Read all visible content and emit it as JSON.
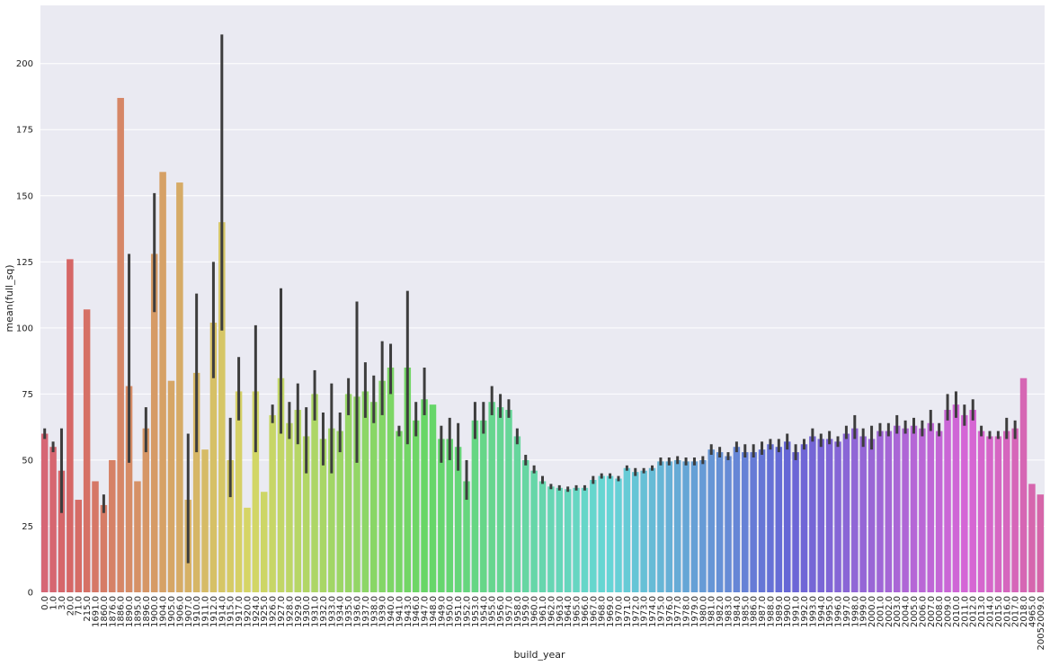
{
  "chart_data": {
    "type": "bar",
    "x_label": "build_year",
    "y_label": "mean(full_sq)",
    "categories": [
      "0.0",
      "1.0",
      "3.0",
      "20.0",
      "71.0",
      "215.0",
      "1691.0",
      "1860.0",
      "1876.0",
      "1886.0",
      "1890.0",
      "1895.0",
      "1896.0",
      "1900.0",
      "1904.0",
      "1905.0",
      "1906.0",
      "1907.0",
      "1910.0",
      "1911.0",
      "1912.0",
      "1914.0",
      "1915.0",
      "1917.0",
      "1920.0",
      "1924.0",
      "1925.0",
      "1926.0",
      "1927.0",
      "1928.0",
      "1929.0",
      "1930.0",
      "1931.0",
      "1932.0",
      "1933.0",
      "1934.0",
      "1935.0",
      "1936.0",
      "1937.0",
      "1938.0",
      "1939.0",
      "1940.0",
      "1941.0",
      "1943.0",
      "1946.0",
      "1947.0",
      "1948.0",
      "1949.0",
      "1950.0",
      "1951.0",
      "1952.0",
      "1953.0",
      "1954.0",
      "1955.0",
      "1956.0",
      "1957.0",
      "1958.0",
      "1959.0",
      "1960.0",
      "1961.0",
      "1962.0",
      "1963.0",
      "1964.0",
      "1965.0",
      "1966.0",
      "1967.0",
      "1968.0",
      "1969.0",
      "1970.0",
      "1971.0",
      "1972.0",
      "1973.0",
      "1974.0",
      "1975.0",
      "1976.0",
      "1977.0",
      "1978.0",
      "1979.0",
      "1980.0",
      "1981.0",
      "1982.0",
      "1983.0",
      "1984.0",
      "1985.0",
      "1986.0",
      "1987.0",
      "1988.0",
      "1989.0",
      "1990.0",
      "1991.0",
      "1992.0",
      "1993.0",
      "1994.0",
      "1995.0",
      "1996.0",
      "1997.0",
      "1998.0",
      "1999.0",
      "2000.0",
      "2001.0",
      "2002.0",
      "2003.0",
      "2004.0",
      "2005.0",
      "2006.0",
      "2007.0",
      "2008.0",
      "2009.0",
      "2010.0",
      "2011.0",
      "2012.0",
      "2013.0",
      "2014.0",
      "2015.0",
      "2016.0",
      "2017.0",
      "2018.0",
      "4965.0",
      "20052009.0"
    ],
    "values": [
      60,
      55,
      46,
      126,
      35,
      107,
      42,
      33,
      50,
      187,
      78,
      42,
      62,
      128,
      159,
      80,
      155,
      35,
      83,
      54,
      102,
      140,
      50,
      76,
      32,
      76,
      38,
      67,
      81,
      64,
      69,
      59,
      75,
      58,
      62,
      61,
      75,
      74,
      76,
      72,
      80,
      85,
      61,
      85,
      65,
      73,
      71,
      58,
      58,
      55,
      42,
      65,
      65,
      72,
      70,
      69,
      59,
      50,
      46,
      42,
      40,
      39.5,
      39,
      39.5,
      39.5,
      42.5,
      44,
      44,
      43,
      47,
      45.5,
      46,
      47,
      49.5,
      49.5,
      50,
      49.5,
      49.5,
      50,
      54,
      53,
      51.5,
      55,
      53,
      53,
      54,
      56,
      55,
      57,
      53,
      56,
      59,
      58,
      58,
      57,
      60,
      62,
      59,
      58,
      61,
      61,
      63,
      62,
      63,
      62,
      64,
      61,
      69,
      71,
      67,
      69,
      61,
      59,
      59,
      61,
      62,
      81,
      41,
      37
    ],
    "ci_low": [
      58,
      53,
      30,
      null,
      null,
      null,
      null,
      30,
      null,
      null,
      49,
      null,
      53,
      106,
      null,
      null,
      null,
      11,
      53,
      null,
      81,
      99,
      36,
      65,
      null,
      53,
      null,
      64,
      60,
      58,
      56,
      45,
      65,
      48,
      45,
      53,
      67,
      49,
      66,
      64,
      67,
      75,
      59,
      56,
      59,
      67,
      null,
      49,
      50,
      46,
      35,
      58,
      60,
      67,
      66,
      66,
      56,
      48,
      45,
      41,
      39,
      38.5,
      38,
      38.5,
      38.5,
      41,
      43,
      43,
      42,
      46,
      44,
      45,
      46,
      48,
      48,
      48.5,
      48,
      48,
      48.5,
      52,
      51,
      50,
      53,
      51,
      51,
      52,
      54,
      53,
      54,
      50,
      54,
      57,
      55,
      56,
      55,
      58,
      58,
      55,
      54,
      59,
      59,
      60,
      60,
      60,
      59,
      61,
      59,
      65,
      66,
      63,
      65,
      59,
      58,
      58,
      58,
      58,
      null,
      null,
      null
    ],
    "ci_high": [
      62,
      57,
      62,
      null,
      null,
      null,
      null,
      37,
      null,
      null,
      128,
      null,
      70,
      151,
      null,
      null,
      null,
      60,
      113,
      null,
      125,
      211,
      66,
      89,
      null,
      101,
      null,
      71,
      115,
      72,
      79,
      70,
      84,
      68,
      79,
      68,
      81,
      110,
      87,
      82,
      95,
      94,
      63,
      114,
      72,
      85,
      null,
      63,
      66,
      64,
      50,
      72,
      72,
      78,
      75,
      73,
      62,
      52,
      48,
      44,
      41,
      40.5,
      40,
      40.5,
      40.5,
      44,
      45,
      45,
      44,
      48,
      47,
      47,
      48,
      51,
      51,
      51.5,
      51,
      51,
      51.5,
      56,
      55,
      53,
      57,
      56,
      56,
      57,
      58,
      58,
      60,
      56,
      58,
      62,
      60,
      61,
      59,
      63,
      67,
      62,
      63,
      64,
      64,
      67,
      65,
      66,
      65,
      69,
      64,
      75,
      76,
      71,
      73,
      63,
      61,
      61,
      66,
      65,
      null,
      null,
      null
    ],
    "ylim": [
      0,
      222
    ],
    "yticks": [
      0,
      25,
      50,
      75,
      100,
      125,
      150,
      175,
      200
    ],
    "grid": true,
    "palette": "husl",
    "background": "#eaeaf2",
    "error_color": "#3d3d3d"
  }
}
